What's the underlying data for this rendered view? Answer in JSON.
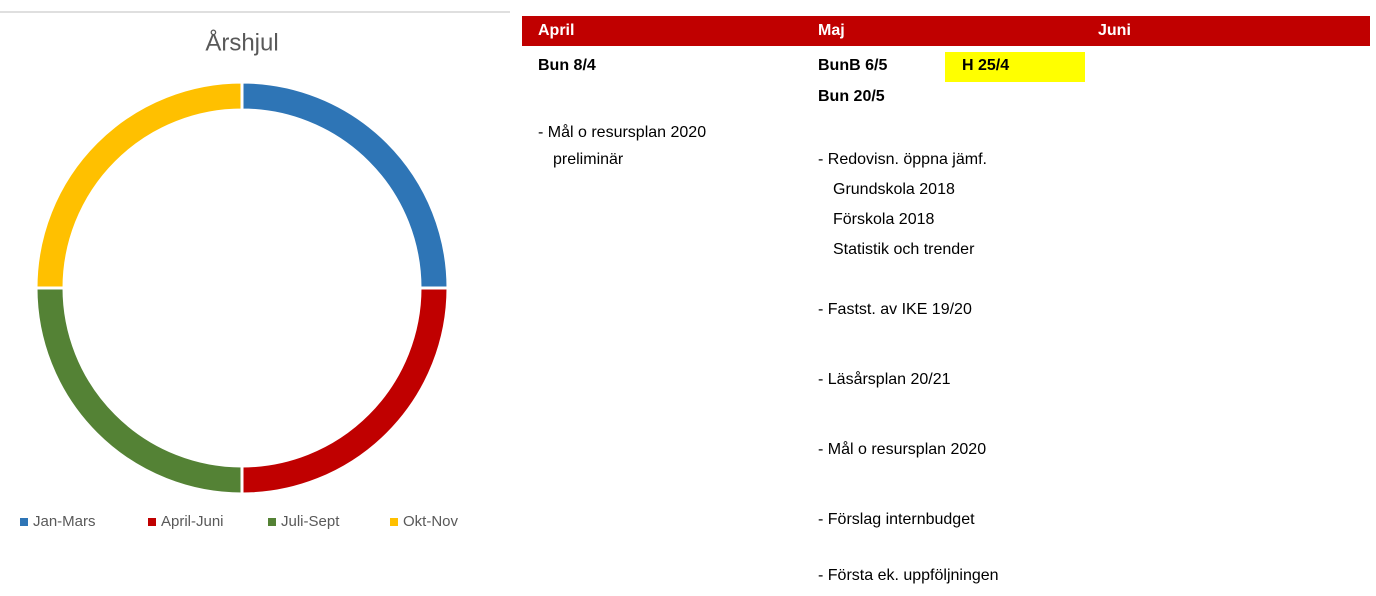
{
  "chart_data": {
    "type": "donut",
    "title": "Årshjul",
    "categories": [
      "Jan-Mars",
      "April-Juni",
      "Juli-Sept",
      "Okt-Nov"
    ],
    "values": [
      25,
      25,
      25,
      25
    ],
    "colors": [
      "#2e75b6",
      "#c00000",
      "#548235",
      "#ffc000"
    ],
    "legend": "bottom"
  },
  "sheet": {
    "headers": [
      "April",
      "Maj",
      "Juni"
    ],
    "april": {
      "meeting": "Bun 8/4",
      "items": [
        "- Mål o resursplan 2020",
        "preliminär"
      ]
    },
    "maj": {
      "meetings": [
        "BunB 6/5",
        "Bun 20/5"
      ],
      "highlight": "H 25/4",
      "items": [
        "- Redovisn. öppna jämf.",
        "Grundskola 2018",
        "Förskola 2018",
        "Statistik och trender",
        "- Fastst. av IKE 19/20",
        "- Läsårsplan 20/21",
        "- Mål o resursplan 2020",
        "- Förslag internbudget",
        "- Första ek. uppföljningen"
      ]
    }
  }
}
